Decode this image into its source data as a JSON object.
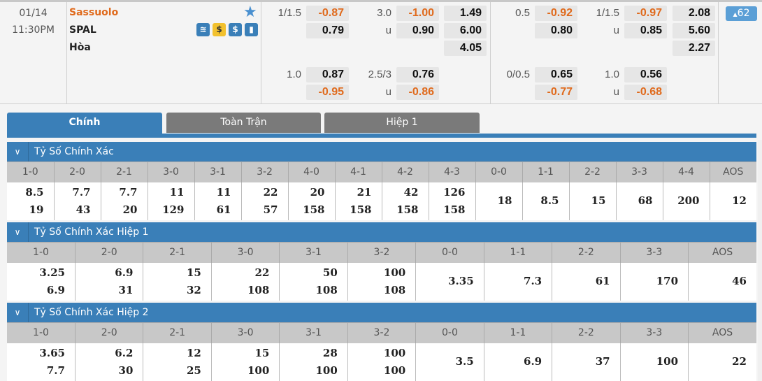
{
  "match": {
    "date": "01/14",
    "time": "11:30PM",
    "home": "Sassuolo",
    "away": "SPAL",
    "draw": "Hòa",
    "home_color": "#e06a1c",
    "icons": [
      "film-icon",
      "coin-swap-icon",
      "dollar-icon",
      "stats-icon"
    ],
    "favorite": "star-icon",
    "more_count": "62"
  },
  "odds": {
    "row1": [
      {
        "label": "1/1.5",
        "value": "-0.87"
      },
      {
        "label": "3.0",
        "value": "-1.00"
      },
      {
        "label": "",
        "value": "1.49"
      },
      {
        "label": "0.5",
        "value": "-0.92"
      },
      {
        "label": "1/1.5",
        "value": "-0.97"
      },
      {
        "label": "",
        "value": "2.08"
      }
    ],
    "row2": [
      {
        "label": "",
        "value": "0.79"
      },
      {
        "label": "u",
        "value": "0.90"
      },
      {
        "label": "",
        "value": "6.00"
      },
      {
        "label": "",
        "value": "0.80"
      },
      {
        "label": "u",
        "value": "0.85"
      },
      {
        "label": "",
        "value": "5.60"
      }
    ],
    "row3": [
      {
        "value": "4.05"
      },
      {
        "value": "2.27"
      }
    ],
    "row4": [
      {
        "label": "1.0",
        "value": "0.87"
      },
      {
        "label": "2.5/3",
        "value": "0.76"
      },
      {
        "label": "0/0.5",
        "value": "0.65"
      },
      {
        "label": "1.0",
        "value": "0.56"
      }
    ],
    "row5": [
      {
        "label": "",
        "value": "-0.95"
      },
      {
        "label": "u",
        "value": "-0.86"
      },
      {
        "label": "",
        "value": "-0.77"
      },
      {
        "label": "u",
        "value": "-0.68"
      }
    ]
  },
  "tabs": [
    "Chính",
    "Toàn Trận",
    "Hiệp 1"
  ],
  "sections": [
    {
      "title": "Tỷ Số Chính Xác",
      "headers": [
        "1-0",
        "2-0",
        "2-1",
        "3-0",
        "3-1",
        "3-2",
        "4-0",
        "4-1",
        "4-2",
        "4-3",
        "0-0",
        "1-1",
        "2-2",
        "3-3",
        "4-4",
        "AOS"
      ],
      "row1": [
        "8.5",
        "7.7",
        "7.7",
        "11",
        "11",
        "22",
        "20",
        "21",
        "42",
        "126",
        "18",
        "8.5",
        "15",
        "68",
        "200",
        "12"
      ],
      "row2": [
        "19",
        "43",
        "20",
        "129",
        "61",
        "57",
        "158",
        "158",
        "158",
        "158"
      ]
    },
    {
      "title": "Tỷ Số Chính Xác Hiệp 1",
      "headers": [
        "1-0",
        "2-0",
        "2-1",
        "3-0",
        "3-1",
        "3-2",
        "0-0",
        "1-1",
        "2-2",
        "3-3",
        "AOS"
      ],
      "row1": [
        "3.25",
        "6.9",
        "15",
        "22",
        "50",
        "100",
        "3.35",
        "7.3",
        "61",
        "170",
        "46"
      ],
      "row2": [
        "6.9",
        "31",
        "32",
        "108",
        "108",
        "108"
      ]
    },
    {
      "title": "Tỷ Số Chính Xác Hiệp 2",
      "headers": [
        "1-0",
        "2-0",
        "2-1",
        "3-0",
        "3-1",
        "3-2",
        "0-0",
        "1-1",
        "2-2",
        "3-3",
        "AOS"
      ],
      "row1": [
        "3.65",
        "6.2",
        "12",
        "15",
        "28",
        "100",
        "3.5",
        "6.9",
        "37",
        "100",
        "22"
      ],
      "row2": [
        "7.7",
        "30",
        "25",
        "100",
        "100",
        "100"
      ]
    }
  ]
}
